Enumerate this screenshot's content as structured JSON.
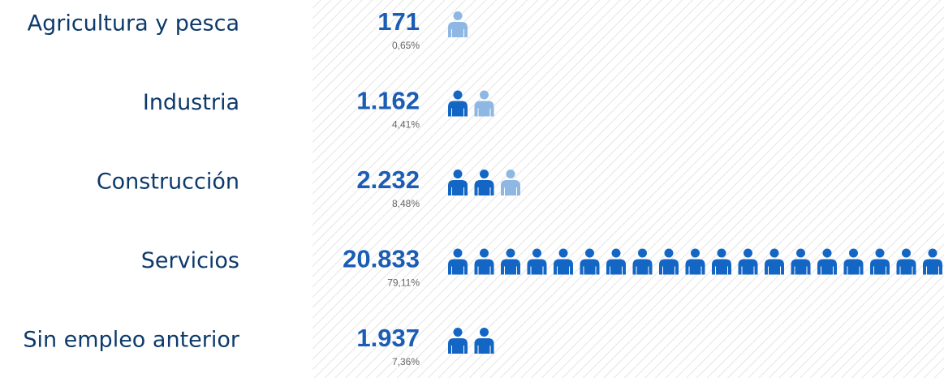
{
  "chart_data": {
    "type": "pictogram",
    "categories": [
      "Agricultura y pesca",
      "Industria",
      "Construcción",
      "Servicios",
      "Sin empleo anterior"
    ],
    "values": [
      171,
      1162,
      2232,
      20833,
      1937
    ],
    "value_labels": [
      "171",
      "1.162",
      "2.232",
      "20.833",
      "1.937"
    ],
    "percentages": [
      0.65,
      4.41,
      8.48,
      79.11,
      7.36
    ],
    "percentage_labels": [
      "0,65%",
      "4,41%",
      "8,48%",
      "79,11%",
      "7,36%"
    ],
    "icon_value": 1000,
    "color": "#1466c4",
    "partial_color": "#8fb7e3",
    "text_color": "#1b5db5"
  }
}
